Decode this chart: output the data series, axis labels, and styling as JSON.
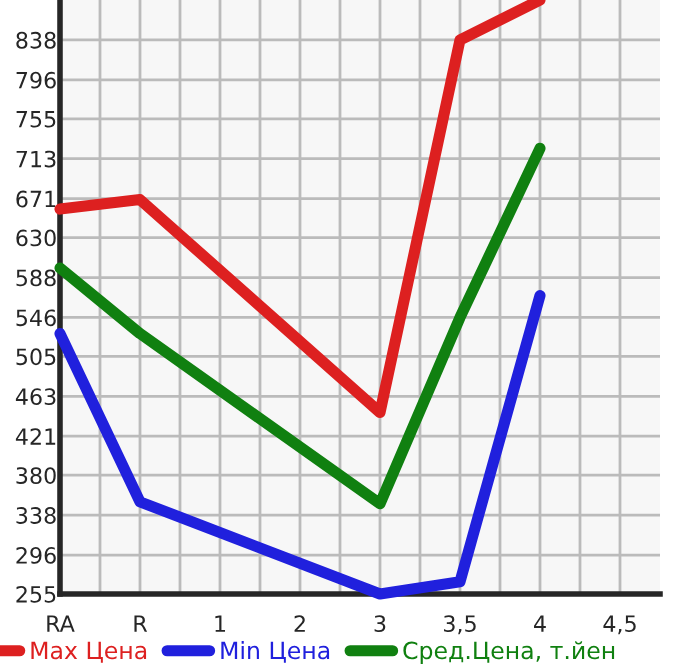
{
  "chart_data": {
    "type": "line",
    "categories": [
      "RA",
      "R",
      "1",
      "2",
      "3",
      "3,5",
      "4",
      "4,5"
    ],
    "series": [
      {
        "name": "Max Цена",
        "color": "#dd2020",
        "values": [
          660,
          670,
          null,
          null,
          446,
          838,
          880,
          null
        ]
      },
      {
        "name": "Min Цена",
        "color": "#2020dd",
        "values": [
          529,
          352,
          null,
          null,
          255,
          268,
          569,
          null
        ]
      },
      {
        "name": "Сред.Цена, т.йен",
        "color": "#108010",
        "values": [
          598,
          529,
          null,
          null,
          350,
          546,
          724,
          null
        ]
      }
    ],
    "ylim": [
      255,
      880
    ],
    "yticks": [
      255,
      296,
      338,
      380,
      421,
      463,
      505,
      546,
      588,
      630,
      671,
      713,
      755,
      796,
      838
    ],
    "grid": true,
    "legend": "bottom",
    "marker": "none",
    "line_style": "solid"
  }
}
